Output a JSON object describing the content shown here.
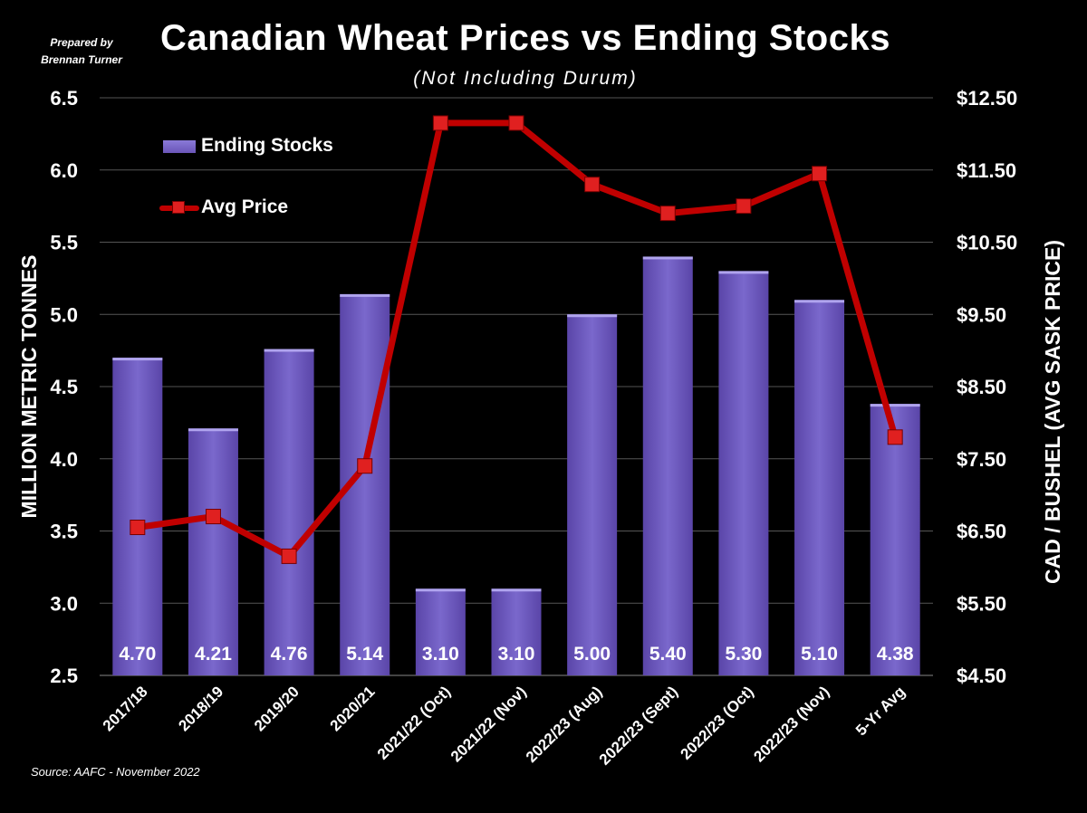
{
  "credit": {
    "line1": "Prepared by",
    "line2": "Brennan Turner"
  },
  "title": "Canadian Wheat Prices vs Ending Stocks",
  "subtitle": "(Not Including Durum)",
  "source": "Source: AAFC - November 2022",
  "legend": {
    "bars": "Ending Stocks",
    "line": "Avg Price"
  },
  "colors": {
    "bar": "#6a55b8",
    "line": "#c00000",
    "marker": "#e02020"
  },
  "chart_data": {
    "type": "bar",
    "categories": [
      "2017/18",
      "2018/19",
      "2019/20",
      "2020/21",
      "2021/22 (Oct)",
      "2021/22 (Nov)",
      "2022/23 (Aug)",
      "2022/23 (Sept)",
      "2022/23 (Oct)",
      "2022/23 (Nov)",
      "5-Yr Avg"
    ],
    "series": [
      {
        "name": "Ending Stocks",
        "type": "bar",
        "axis": "left",
        "values": [
          4.7,
          4.21,
          4.76,
          5.14,
          3.1,
          3.1,
          5.0,
          5.4,
          5.3,
          5.1,
          4.38
        ],
        "labels": [
          "4.70",
          "4.21",
          "4.76",
          "5.14",
          "3.10",
          "3.10",
          "5.00",
          "5.40",
          "5.30",
          "5.10",
          "4.38"
        ]
      },
      {
        "name": "Avg Price",
        "type": "line",
        "axis": "right",
        "values": [
          6.55,
          6.7,
          6.15,
          7.4,
          12.15,
          12.15,
          11.3,
          10.9,
          11.0,
          11.45,
          7.8
        ]
      }
    ],
    "ylabel": "MILLION METRIC TONNES",
    "y2label": "CAD / BUSHEL (AVG SASK PRICE)",
    "ylim": [
      2.5,
      6.5
    ],
    "y2lim": [
      4.5,
      12.5
    ],
    "yticks": [
      "2.5",
      "3.0",
      "3.5",
      "4.0",
      "4.5",
      "5.0",
      "5.5",
      "6.0",
      "6.5"
    ],
    "y2ticks": [
      "$4.50",
      "$5.50",
      "$6.50",
      "$7.50",
      "$8.50",
      "$9.50",
      "$10.50",
      "$11.50",
      "$12.50"
    ],
    "grid": true,
    "legend_position": "top-left"
  }
}
